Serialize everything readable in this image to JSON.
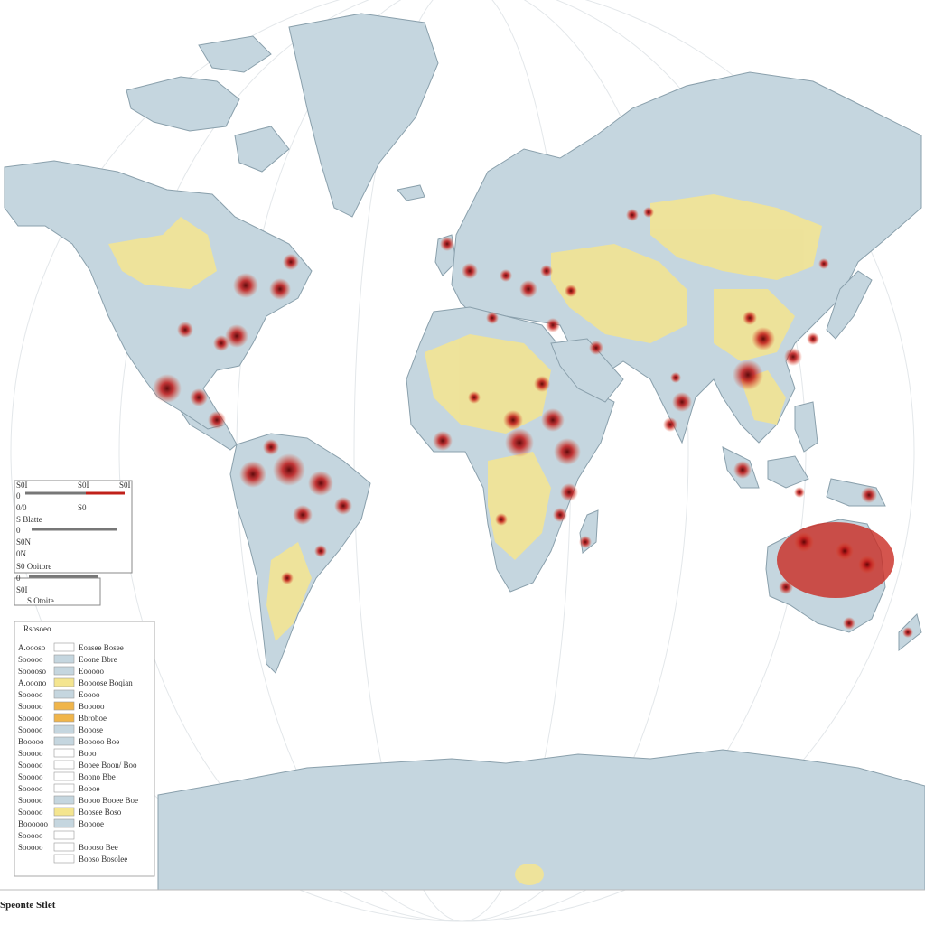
{
  "colors": {
    "ocean": "#ffffff",
    "land": "#c5d6df",
    "land_edge": "#8aa0ac",
    "low": "#f4e58f",
    "medium": "#f0b54a",
    "high": "#d21e1e",
    "very_high": "#7a0606"
  },
  "scale_bar": {
    "labels": [
      "S0I",
      "S0I",
      "S0I",
      "0",
      "0/0",
      "S0",
      "S Blatte",
      "0",
      "S0N",
      "0N",
      "S0 Ooitore",
      "0",
      "S0I",
      "S Otoite"
    ]
  },
  "legend": {
    "title": "Rsosoeo",
    "rows": [
      {
        "code": "A.oooso",
        "swatch": "#ffffff",
        "label": "Eoasee Bosee"
      },
      {
        "code": "Sooooo",
        "swatch": "#c5d6df",
        "label": "Eoone Bbre"
      },
      {
        "code": "Sooooso",
        "swatch": "#c5d6df",
        "label": "Eooooo"
      },
      {
        "code": "A.ooono",
        "swatch": "#f4e58f",
        "label": "Boooose Boqian"
      },
      {
        "code": "Sooooo",
        "swatch": "#c5d6df",
        "label": "Eoooo"
      },
      {
        "code": "Sooooo",
        "swatch": "#f0b54a",
        "label": "Booooo"
      },
      {
        "code": "Sooooo",
        "swatch": "#f0b54a",
        "label": "Bbroboe"
      },
      {
        "code": "Sooooo",
        "swatch": "#c5d6df",
        "label": "Booose"
      },
      {
        "code": "Booooo",
        "swatch": "#c5d6df",
        "label": "Booooo Boe"
      },
      {
        "code": "Sooooo",
        "swatch": "#ffffff",
        "label": "Booo"
      },
      {
        "code": "Sooooo",
        "swatch": "#ffffff",
        "label": "Booee Boon/ Boo"
      },
      {
        "code": "Sooooo",
        "swatch": "#ffffff",
        "label": "Boono Bbe"
      },
      {
        "code": "Sooooo",
        "swatch": "#ffffff",
        "label": "Boboe"
      },
      {
        "code": "Sooooo",
        "swatch": "#c5d6df",
        "label": "Boooo Booee Boe"
      },
      {
        "code": "Sooooo",
        "swatch": "#f4e58f",
        "label": "Boosee Boso"
      },
      {
        "code": "Boooooo",
        "swatch": "#c5d6df",
        "label": "Booooe"
      },
      {
        "code": "Sooooo",
        "swatch": "#ffffff",
        "label": ""
      },
      {
        "code": "Sooooo",
        "swatch": "#ffffff",
        "label": "Boooso Bee"
      },
      {
        "code": "",
        "swatch": "#ffffff",
        "label": "Booso Bosolee"
      }
    ]
  },
  "footer": "Speonte Stlet"
}
